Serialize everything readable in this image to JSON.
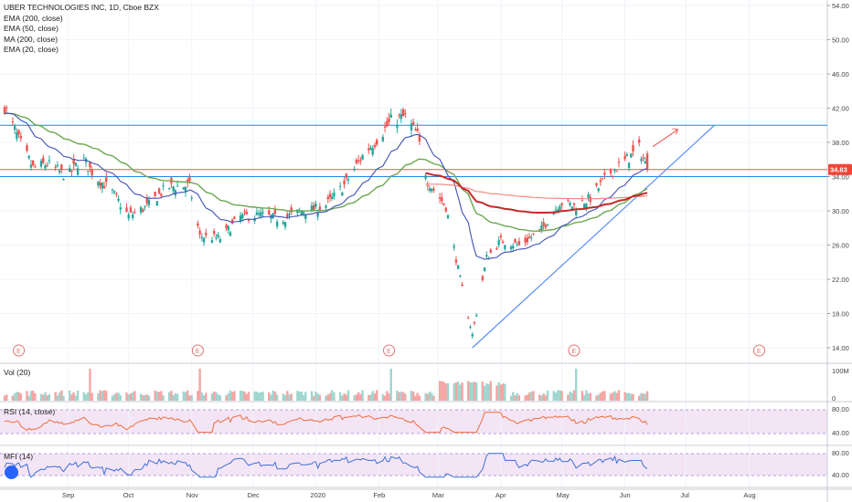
{
  "title": "UBER TECHNOLOGIES INC, 1D, Cboe BZX",
  "indicators": [
    "EMA (200, close)",
    "EMA (50, close)",
    "MA (200, close)",
    "EMA (20, close)"
  ],
  "price_axis": {
    "ticks": [
      "54.00",
      "50.00",
      "46.00",
      "42.00",
      "38.00",
      "34.00",
      "30.00",
      "26.00",
      "22.00",
      "18.00",
      "14.00"
    ],
    "last_price": "34.83",
    "last_price_color": "#f44336"
  },
  "volume_panel": {
    "label": "Vol (20)",
    "ticks": [
      "100M",
      "0"
    ]
  },
  "rsi_panel": {
    "label": "RSI (14, close)",
    "ticks": [
      "80.00",
      "40.00"
    ]
  },
  "mfi_panel": {
    "label": "MFI (14)",
    "ticks": [
      "80.00",
      "40.00"
    ]
  },
  "x_axis": {
    "labels": [
      "Sep",
      "Oct",
      "Nov",
      "Dec",
      "2020",
      "Feb",
      "Mar",
      "Apr",
      "May",
      "Jun",
      "Jul",
      "Aug"
    ]
  },
  "earnings_markers": [
    "E",
    "E",
    "E",
    "E",
    "E"
  ],
  "colors": {
    "up": "#26a69a",
    "down": "#ef5350",
    "ema200": "#c62828",
    "ema50": "#6aa84f",
    "ma200": "#f28b82",
    "ema20": "#3f51b5",
    "hline_blue": "#1e88e5",
    "hline_red": "#ef5350",
    "trendline": "#5b8ff9",
    "rsi_line": "#ef6c3a",
    "mfi_line": "#3d6fd6",
    "band_fill": "#f3e5f5"
  },
  "chart_data": {
    "type": "candlestick",
    "title": "UBER TECHNOLOGIES INC, 1D, Cboe BZX",
    "ylim": [
      13.2,
      55
    ],
    "period": [
      "2019-08-01",
      "2020-06-12"
    ],
    "close_approx": [
      [
        "2019-08-01",
        42.2
      ],
      [
        "2019-08-08",
        38.3
      ],
      [
        "2019-08-15",
        35.0
      ],
      [
        "2019-08-22",
        35.5
      ],
      [
        "2019-09-01",
        34.0
      ],
      [
        "2019-09-08",
        36.2
      ],
      [
        "2019-09-15",
        33.9
      ],
      [
        "2019-09-22",
        32.5
      ],
      [
        "2019-10-01",
        29.4
      ],
      [
        "2019-10-10",
        30.5
      ],
      [
        "2019-10-20",
        32.8
      ],
      [
        "2019-10-31",
        32.9
      ],
      [
        "2019-11-05",
        27.0
      ],
      [
        "2019-11-15",
        26.8
      ],
      [
        "2019-11-25",
        29.3
      ],
      [
        "2019-12-05",
        29.5
      ],
      [
        "2019-12-15",
        29.0
      ],
      [
        "2019-12-25",
        30.0
      ],
      [
        "2020-01-05",
        30.4
      ],
      [
        "2020-01-15",
        33.0
      ],
      [
        "2020-01-25",
        36.8
      ],
      [
        "2020-02-01",
        38.6
      ],
      [
        "2020-02-07",
        40.5
      ],
      [
        "2020-02-14",
        41.0
      ],
      [
        "2020-02-20",
        38.8
      ],
      [
        "2020-02-25",
        33.5
      ],
      [
        "2020-03-05",
        30.5
      ],
      [
        "2020-03-12",
        22.0
      ],
      [
        "2020-03-18",
        15.5
      ],
      [
        "2020-03-25",
        24.5
      ],
      [
        "2020-04-01",
        26.5
      ],
      [
        "2020-04-10",
        26.0
      ],
      [
        "2020-04-20",
        27.5
      ],
      [
        "2020-04-30",
        31.0
      ],
      [
        "2020-05-08",
        30.5
      ],
      [
        "2020-05-15",
        31.5
      ],
      [
        "2020-05-25",
        34.5
      ],
      [
        "2020-06-01",
        35.8
      ],
      [
        "2020-06-08",
        37.3
      ],
      [
        "2020-06-12",
        34.83
      ]
    ],
    "horizontal_levels": [
      40.0,
      34.83,
      34.0
    ]
  }
}
